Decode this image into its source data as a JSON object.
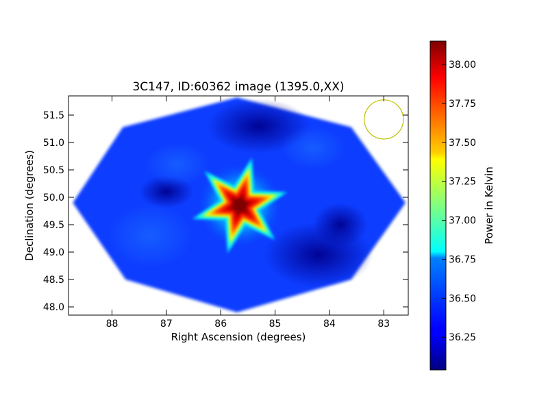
{
  "chart_data": {
    "type": "heatmap",
    "title": "3C147, ID:60362 image (1395.0,XX)",
    "xlabel": "Right Ascension (degrees)",
    "ylabel": "Declination (degrees)",
    "xlim": [
      88.8,
      82.55
    ],
    "ylim": [
      47.85,
      51.85
    ],
    "x_ticks": [
      "88",
      "87",
      "86",
      "85",
      "84",
      "83"
    ],
    "x_tick_values": [
      88,
      87,
      86,
      85,
      84,
      83
    ],
    "y_ticks": [
      "48.0",
      "48.5",
      "49.0",
      "49.5",
      "50.0",
      "50.5",
      "51.0",
      "51.5"
    ],
    "y_tick_values": [
      48.0,
      48.5,
      49.0,
      49.5,
      50.0,
      50.5,
      51.0,
      51.5
    ],
    "colorbar": {
      "label": "Power in Kelvin",
      "colormap": "jet",
      "range": [
        36.04,
        38.15
      ],
      "ticks": [
        "36.25",
        "36.50",
        "36.75",
        "37.00",
        "37.25",
        "37.50",
        "37.75",
        "38.00"
      ],
      "tick_values": [
        36.25,
        36.5,
        36.75,
        37.0,
        37.25,
        37.5,
        37.75,
        38.0
      ]
    },
    "source": {
      "ra": 85.65,
      "dec": 49.85,
      "peak_value": 38.1,
      "background_value": 36.3
    },
    "map_footprint": {
      "shape": "octagon",
      "vertices_radec": [
        [
          85.7,
          51.82
        ],
        [
          87.8,
          51.28
        ],
        [
          88.72,
          49.9
        ],
        [
          87.75,
          48.5
        ],
        [
          85.7,
          47.9
        ],
        [
          83.6,
          48.5
        ],
        [
          82.6,
          49.9
        ],
        [
          83.6,
          51.28
        ]
      ]
    },
    "beam": {
      "ra": 83.0,
      "dec": 51.42,
      "radius_ra_deg": 0.36,
      "color": "#bfbf00"
    },
    "colors": {
      "background_blue": "#0a3cff",
      "deep_blue": "#00008f",
      "peak_red": "#7f0000"
    }
  }
}
